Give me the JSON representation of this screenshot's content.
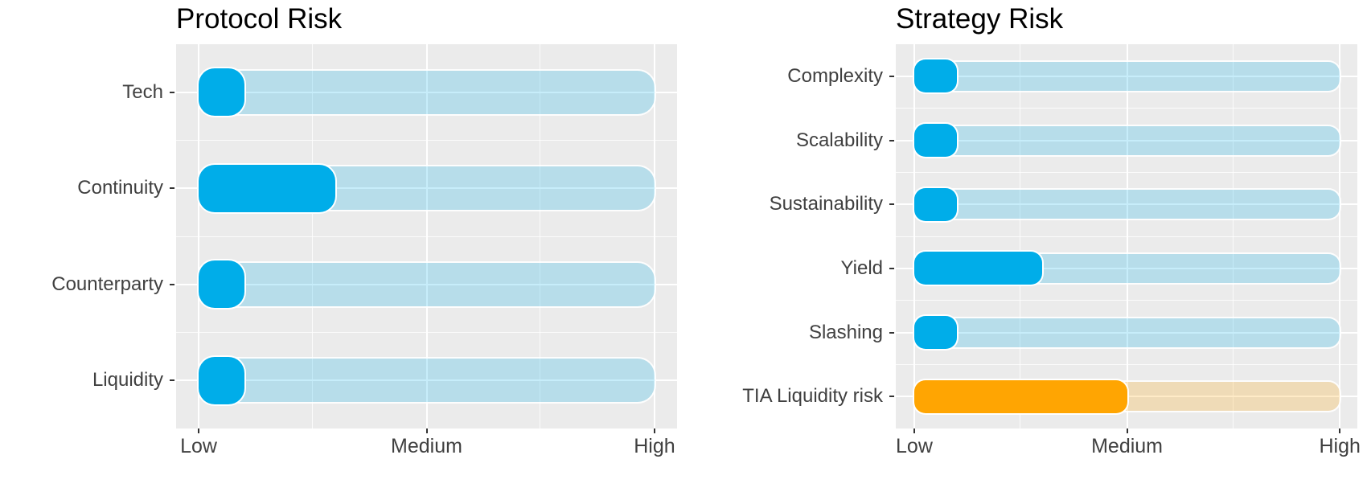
{
  "colors": {
    "background": "#ffffff",
    "panel_background": "#ebebeb",
    "gridline": "#ffffff",
    "bar_blue": "#00ade9",
    "bar_orange": "#ffa502",
    "track_opacity": 0.22,
    "title_text": "#000000",
    "axis_text": "#404040",
    "tick_mark": "#333333"
  },
  "chart_data": [
    {
      "type": "bar",
      "orientation": "horizontal",
      "title": "Protocol Risk",
      "categories": [
        "Tech",
        "Continuity",
        "Counterparty",
        "Liquidity"
      ],
      "values": [
        0.1,
        0.3,
        0.1,
        0.1
      ],
      "value_scale": "0 = Low, 0.5 = Medium, 1 = High",
      "x_tick_labels": [
        "Low",
        "Medium",
        "High"
      ],
      "xlim": [
        0,
        1
      ],
      "bar_color_keys": [
        "bar_blue",
        "bar_blue",
        "bar_blue",
        "bar_blue"
      ],
      "grid": true,
      "legend": false
    },
    {
      "type": "bar",
      "orientation": "horizontal",
      "title": "Strategy Risk",
      "categories": [
        "Complexity",
        "Scalability",
        "Sustainability",
        "Yield",
        "Slashing",
        "TIA Liquidity risk"
      ],
      "values": [
        0.1,
        0.1,
        0.1,
        0.3,
        0.1,
        0.5
      ],
      "value_scale": "0 = Low, 0.5 = Medium, 1 = High",
      "x_tick_labels": [
        "Low",
        "Medium",
        "High"
      ],
      "xlim": [
        0,
        1
      ],
      "bar_color_keys": [
        "bar_blue",
        "bar_blue",
        "bar_blue",
        "bar_blue",
        "bar_blue",
        "bar_orange"
      ],
      "grid": true,
      "legend": false
    }
  ]
}
